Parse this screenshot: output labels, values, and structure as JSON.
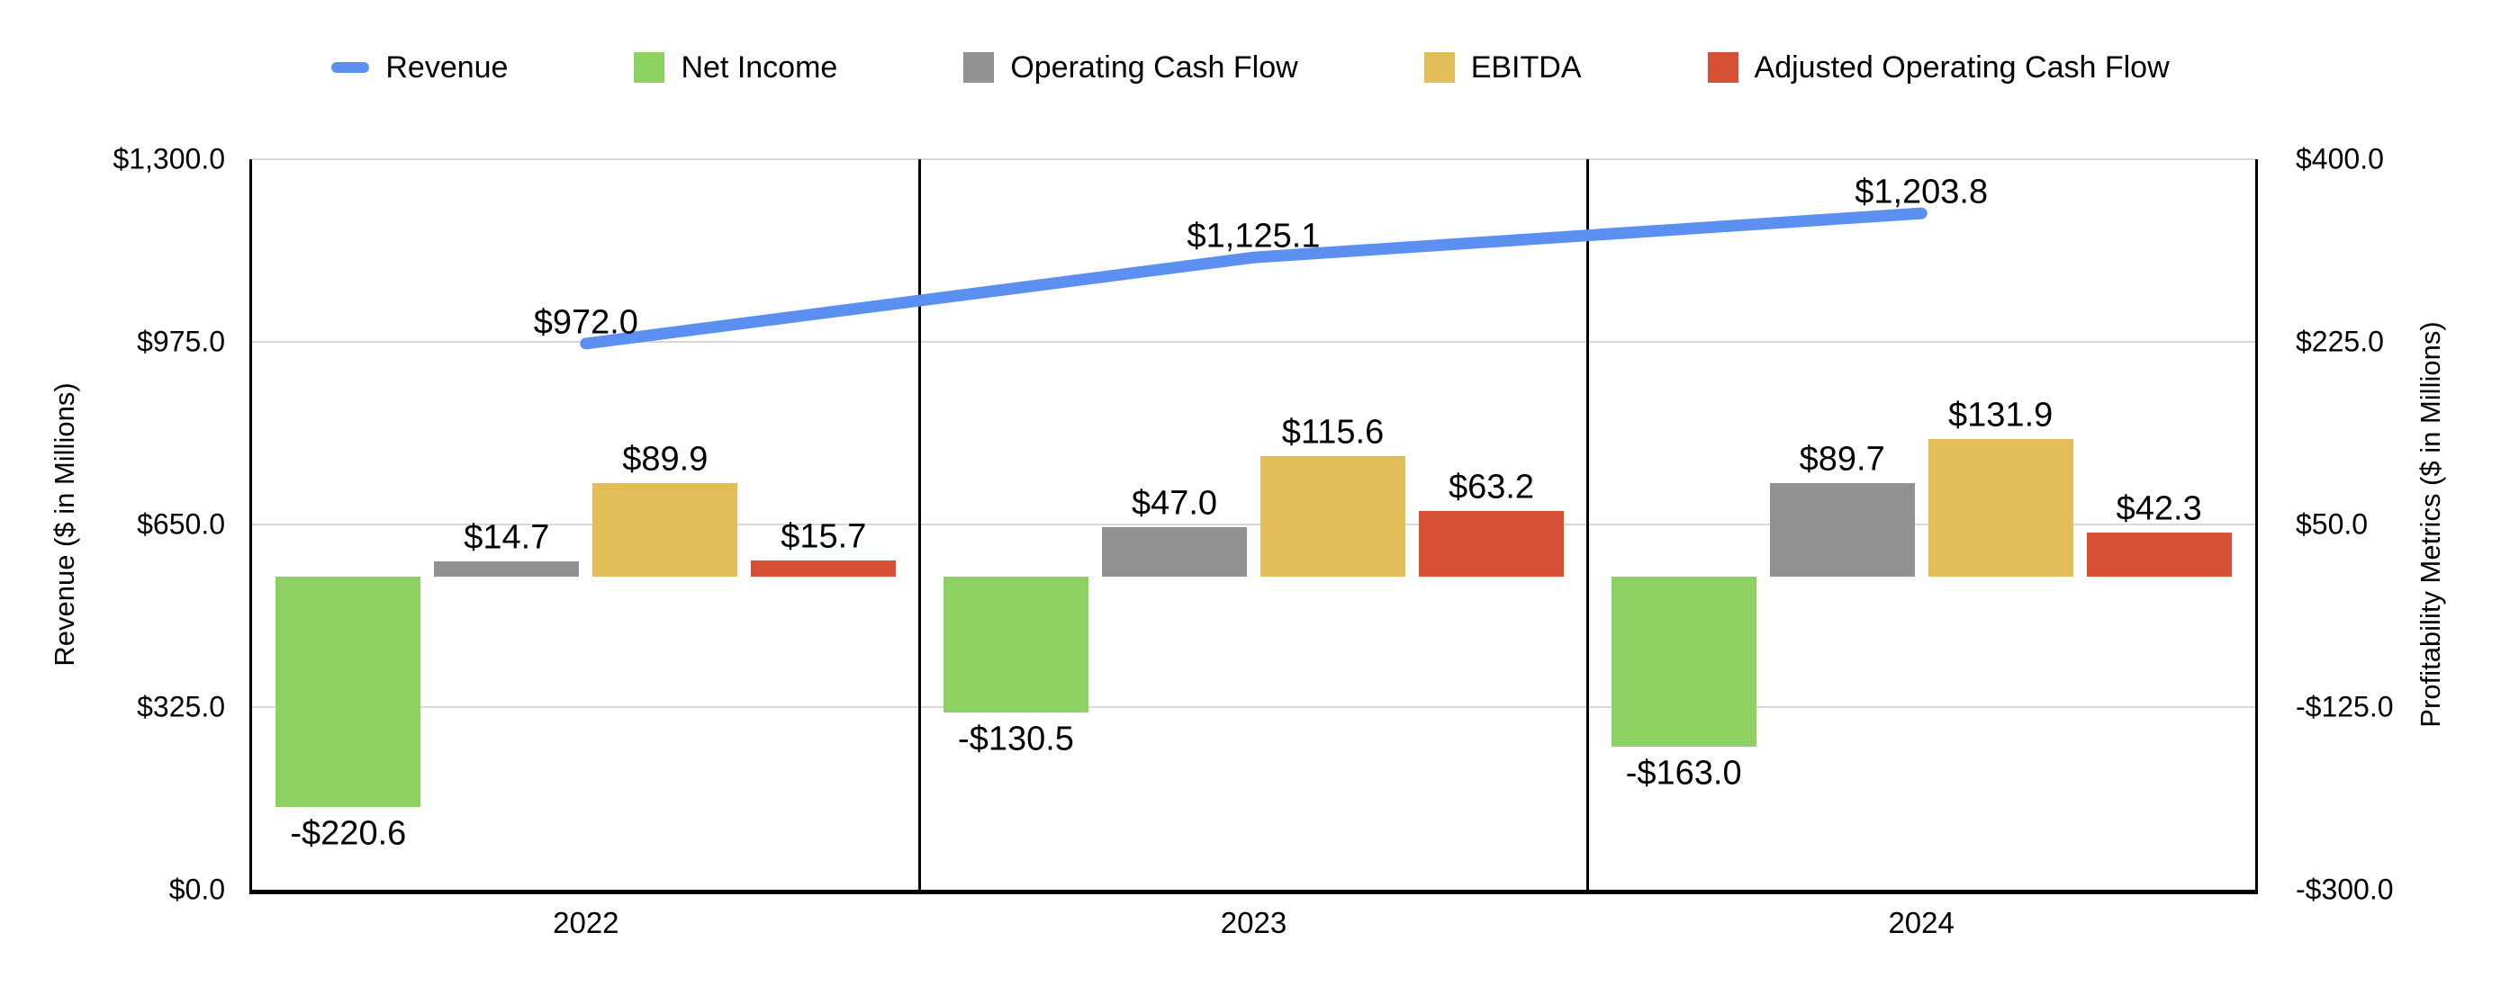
{
  "legend": {
    "items": [
      {
        "label": "Revenue",
        "marker": "line",
        "color": "#5b8ff0"
      },
      {
        "label": "Net Income",
        "marker": "square",
        "color": "#8ed163"
      },
      {
        "label": "Operating Cash Flow",
        "marker": "square",
        "color": "#929292"
      },
      {
        "label": "EBITDA",
        "marker": "square",
        "color": "#e3bd58"
      },
      {
        "label": "Adjusted Operating Cash Flow",
        "marker": "square",
        "color": "#d65035"
      }
    ]
  },
  "chart_data": {
    "type": "combo bar+line, dual axis",
    "categories": [
      "2022",
      "2023",
      "2024"
    ],
    "left_axis": {
      "title": "Revenue ($ in Millions)",
      "min": 0,
      "max": 1300,
      "ticks": [
        "$1,300.0",
        "$975.0",
        "$650.0",
        "$325.0",
        "$0.0"
      ]
    },
    "right_axis": {
      "title": "Profitability Metrics ($ in Millions)",
      "min": -300,
      "max": 400,
      "ticks": [
        "$400.0",
        "$225.0",
        "$50.0",
        "-$125.0",
        "-$300.0"
      ]
    },
    "line_series": {
      "name": "Revenue",
      "axis": "left",
      "color": "#5b8ff0",
      "values": [
        972.0,
        1125.1,
        1203.8
      ],
      "labels": [
        "$972.0",
        "$1,125.1",
        "$1,203.8"
      ]
    },
    "bar_series": [
      {
        "name": "Net Income",
        "axis": "right",
        "color": "#8ed163",
        "values": [
          -220.6,
          -130.5,
          -163.0
        ],
        "labels": [
          "-$220.6",
          "-$130.5",
          "-$163.0"
        ]
      },
      {
        "name": "Operating Cash Flow",
        "axis": "right",
        "color": "#929292",
        "values": [
          14.7,
          47.0,
          89.7
        ],
        "labels": [
          "$14.7",
          "$47.0",
          "$89.7"
        ]
      },
      {
        "name": "EBITDA",
        "axis": "right",
        "color": "#e3bd58",
        "values": [
          89.9,
          115.6,
          131.9
        ],
        "labels": [
          "$89.9",
          "$115.6",
          "$131.9"
        ]
      },
      {
        "name": "Adjusted Operating Cash Flow",
        "axis": "right",
        "color": "#d65035",
        "values": [
          15.7,
          63.2,
          42.3
        ],
        "labels": [
          "$15.7",
          "$63.2",
          "$42.3"
        ]
      }
    ],
    "grid": true,
    "legend_position": "top"
  }
}
